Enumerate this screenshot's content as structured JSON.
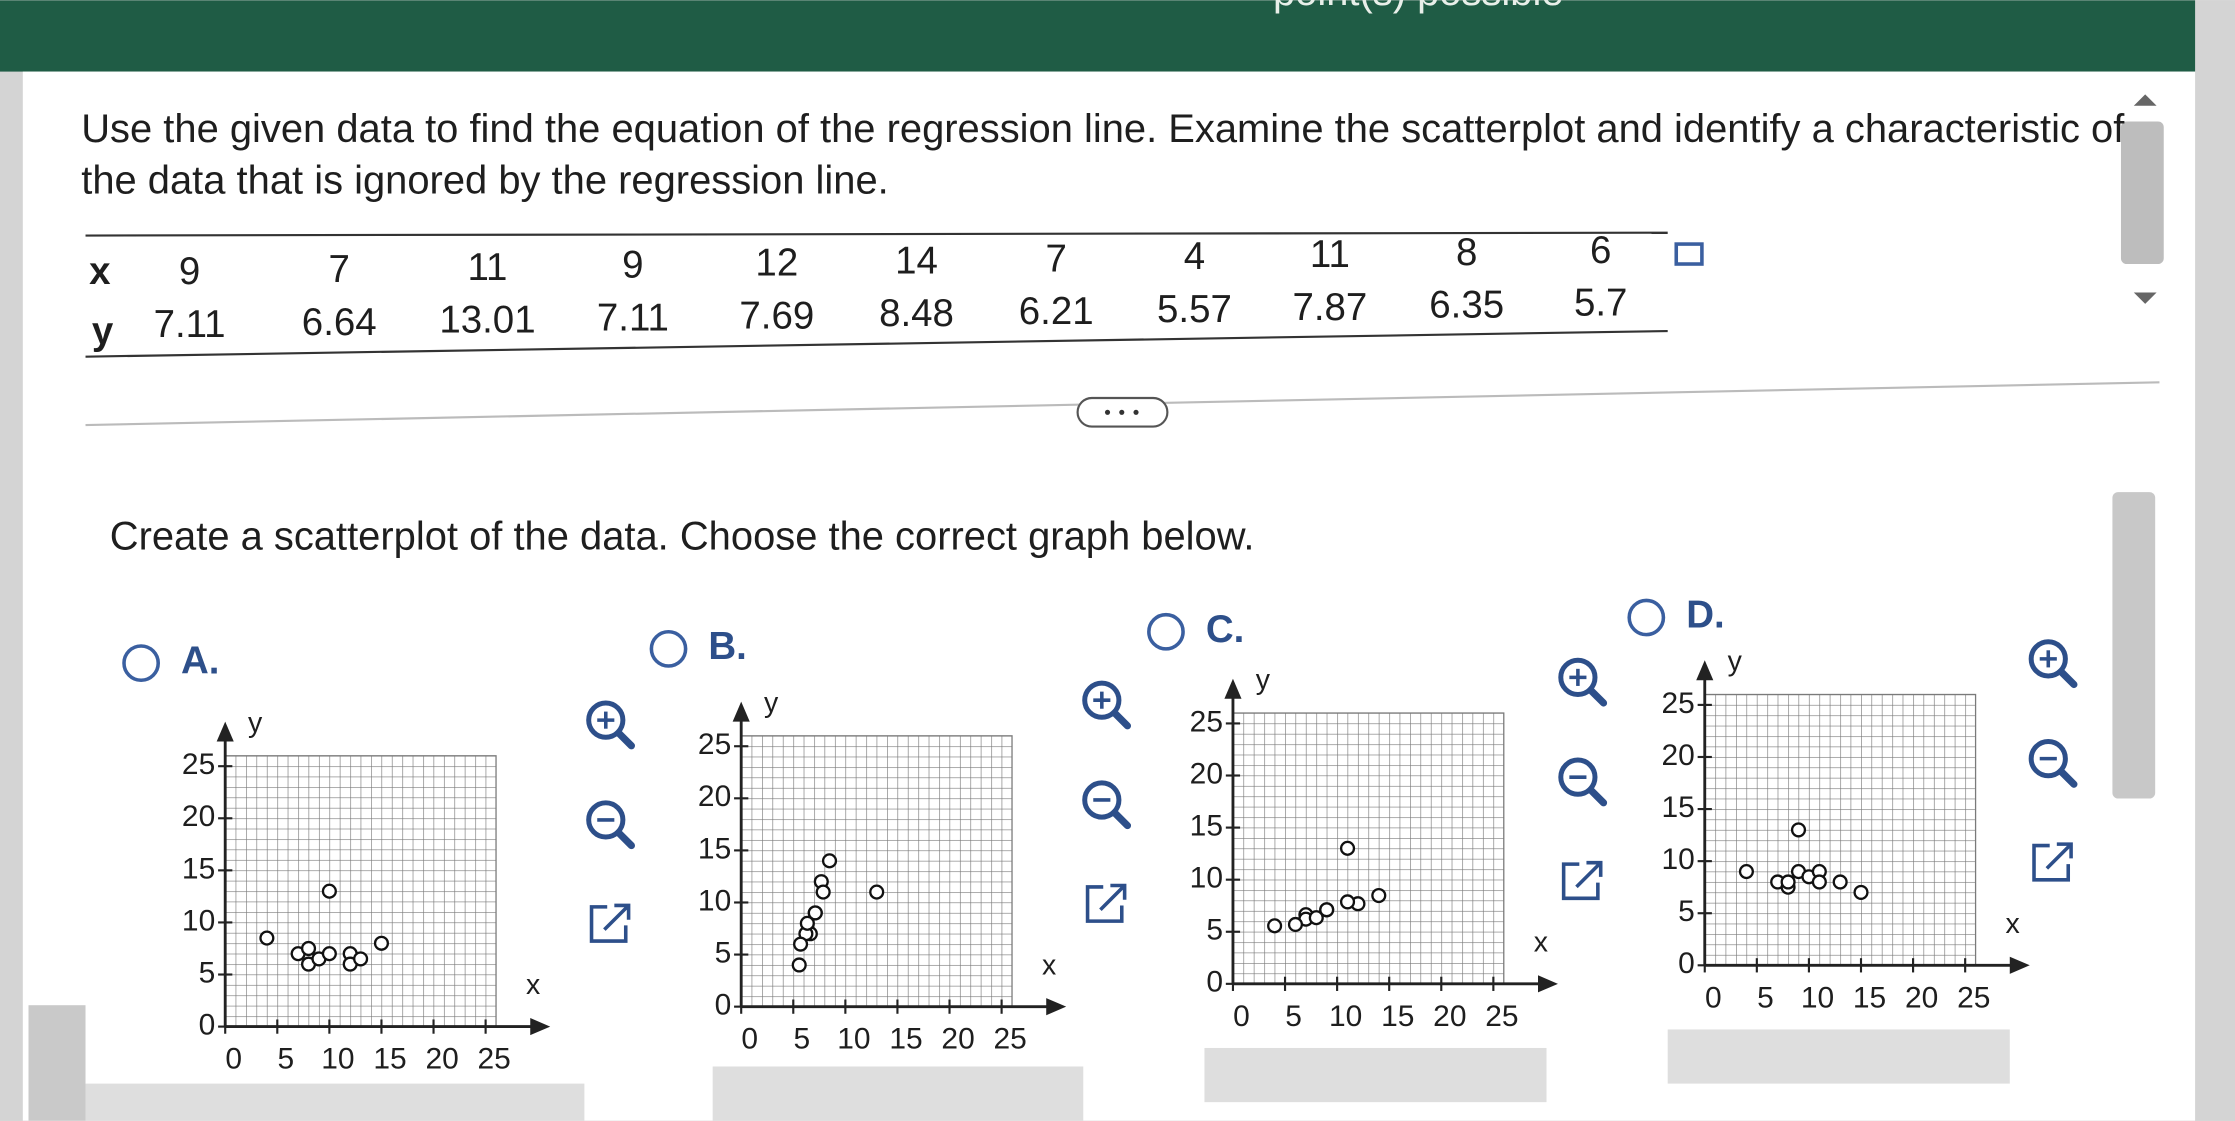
{
  "header": {
    "status": "point(s) possible"
  },
  "question": {
    "lines": [
      "Use the given data to find the equation of the regression line. Examine the scatterplot and identify a characteristic of",
      "the data that is ignored by the regression line."
    ]
  },
  "table": {
    "x_label": "x",
    "y_label": "y",
    "x": [
      9,
      7,
      11,
      9,
      12,
      14,
      7,
      4,
      11,
      8,
      6
    ],
    "y": [
      7.11,
      6.64,
      13.01,
      7.11,
      7.69,
      8.48,
      6.21,
      5.57,
      7.87,
      6.35,
      5.7
    ]
  },
  "prompt": "Create a scatterplot of the data. Choose the correct graph below.",
  "options": [
    {
      "label": "A.",
      "plot": {
        "type": "scatter",
        "x_label": "x",
        "y_label": "y",
        "xlim": [
          0,
          26
        ],
        "ylim": [
          0,
          26
        ],
        "xticks": [
          0,
          5,
          10,
          15,
          20,
          25
        ],
        "yticks": [
          0,
          5,
          10,
          15,
          20,
          25
        ],
        "grid_step": 1,
        "x": [
          4,
          7,
          8,
          8,
          9,
          10,
          10,
          12,
          12,
          13,
          15
        ],
        "y": [
          8.5,
          7,
          6,
          7.5,
          6.5,
          7,
          13,
          7,
          6,
          6.5,
          8
        ]
      }
    },
    {
      "label": "B.",
      "plot": {
        "type": "scatter",
        "x_label": "x",
        "y_label": "y",
        "xlim": [
          0,
          26
        ],
        "ylim": [
          0,
          26
        ],
        "xticks": [
          0,
          5,
          10,
          15,
          20,
          25
        ],
        "yticks": [
          0,
          5,
          10,
          15,
          20,
          25
        ],
        "grid_step": 1,
        "x": [
          7.11,
          6.64,
          13.01,
          7.11,
          7.69,
          8.48,
          6.21,
          5.57,
          7.87,
          6.35,
          5.7
        ],
        "y": [
          9,
          7,
          11,
          9,
          12,
          14,
          7,
          4,
          11,
          8,
          6
        ]
      }
    },
    {
      "label": "C.",
      "plot": {
        "type": "scatter",
        "x_label": "x",
        "y_label": "y",
        "xlim": [
          0,
          26
        ],
        "ylim": [
          0,
          26
        ],
        "xticks": [
          0,
          5,
          10,
          15,
          20,
          25
        ],
        "yticks": [
          0,
          5,
          10,
          15,
          20,
          25
        ],
        "grid_step": 1,
        "x": [
          9,
          7,
          11,
          9,
          12,
          14,
          7,
          4,
          11,
          8,
          6
        ],
        "y": [
          7.11,
          6.64,
          13.01,
          7.11,
          7.69,
          8.48,
          6.21,
          5.57,
          7.87,
          6.35,
          5.7
        ]
      }
    },
    {
      "label": "D.",
      "plot": {
        "type": "scatter",
        "x_label": "x",
        "y_label": "y",
        "xlim": [
          0,
          26
        ],
        "ylim": [
          0,
          26
        ],
        "xticks": [
          0,
          5,
          10,
          15,
          20,
          25
        ],
        "yticks": [
          0,
          5,
          10,
          15,
          20,
          25
        ],
        "grid_step": 1,
        "x": [
          4,
          7,
          8,
          8,
          9,
          9,
          10,
          11,
          11,
          13,
          15
        ],
        "y": [
          9,
          8,
          7.5,
          8,
          9,
          13,
          8.5,
          9,
          8,
          8,
          7
        ]
      }
    }
  ]
}
